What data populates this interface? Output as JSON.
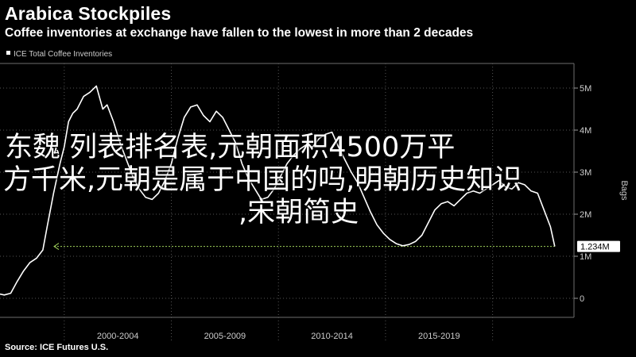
{
  "title": "Arabica Stockpiles",
  "subtitle": "Coffee inventories at exchange have fallen to the lowest in more than 2 decades",
  "legend_label": "ICE Total Coffee Inventories",
  "source": "Source: ICE Futures U.S.",
  "overlay": {
    "line1": "东魏  列表排名表,元朝面积4500万平",
    "line2": "方千米,元朝是属于中国的吗,明朝历史知识",
    "line3": ",宋朝简史"
  },
  "colors": {
    "background": "#000000",
    "line": "#ffffff",
    "grid": "#555555",
    "reference_line": "#9fd15a"
  },
  "chart_data": {
    "type": "line",
    "title": "Arabica Stockpiles",
    "subtitle": "Coffee inventories at exchange have fallen to the lowest in more than 2 decades",
    "ylabel": "Bags",
    "ylim": [
      0,
      5.2
    ],
    "xlim": [
      1997.0,
      2023.8
    ],
    "y_ticks": [
      0,
      1,
      2,
      3,
      4,
      5
    ],
    "y_tick_labels": [
      "0",
      "1M",
      "2M",
      "3M",
      "4M",
      "5M"
    ],
    "x_tick_labels": [
      {
        "label": "2000-2004",
        "center": 2002.5
      },
      {
        "label": "2005-2009",
        "center": 2007.5
      },
      {
        "label": "2010-2014",
        "center": 2012.5
      },
      {
        "label": "2015-2019",
        "center": 2017.5
      }
    ],
    "x_separators": [
      2000.0,
      2005.0,
      2010.0,
      2015.0,
      2020.0
    ],
    "latest_value": 1.234,
    "latest_label": "1.234M",
    "grid": true,
    "series": [
      {
        "name": "ICE Total Coffee Inventories",
        "x": [
          1997.0,
          1997.2,
          1997.5,
          1997.8,
          1998.1,
          1998.4,
          1998.7,
          1999.0,
          1999.2,
          1999.5,
          1999.8,
          2000.0,
          2000.2,
          2000.4,
          2000.6,
          2000.9,
          2001.2,
          2001.5,
          2001.8,
          2002.0,
          2002.3,
          2002.6,
          2002.9,
          2003.2,
          2003.5,
          2003.8,
          2004.1,
          2004.4,
          2004.7,
          2005.0,
          2005.3,
          2005.6,
          2005.9,
          2006.2,
          2006.5,
          2006.8,
          2007.1,
          2007.4,
          2007.7,
          2008.0,
          2008.3,
          2008.6,
          2008.9,
          2009.2,
          2009.5,
          2009.8,
          2010.1,
          2010.4,
          2010.7,
          2011.0,
          2011.3,
          2011.6,
          2011.9,
          2012.2,
          2012.5,
          2012.8,
          2013.1,
          2013.4,
          2013.7,
          2014.0,
          2014.3,
          2014.6,
          2014.9,
          2015.2,
          2015.5,
          2015.8,
          2016.1,
          2016.4,
          2016.7,
          2017.0,
          2017.3,
          2017.6,
          2017.9,
          2018.2,
          2018.5,
          2018.8,
          2019.1,
          2019.4,
          2019.7,
          2020.0,
          2020.3,
          2020.6,
          2020.9,
          2021.2,
          2021.5,
          2021.8,
          2022.1,
          2022.4,
          2022.7,
          2022.9
        ],
        "values": [
          0.1,
          0.08,
          0.12,
          0.4,
          0.65,
          0.85,
          0.95,
          1.15,
          1.7,
          2.5,
          3.2,
          3.6,
          4.2,
          4.4,
          4.5,
          4.8,
          4.9,
          5.05,
          4.5,
          4.6,
          4.2,
          3.7,
          3.3,
          2.9,
          2.6,
          2.4,
          2.35,
          2.5,
          2.8,
          3.2,
          3.8,
          4.3,
          4.55,
          4.6,
          4.35,
          4.2,
          4.45,
          4.3,
          4.0,
          3.7,
          3.2,
          2.85,
          2.6,
          2.35,
          2.4,
          2.6,
          2.9,
          3.2,
          3.4,
          3.55,
          3.65,
          3.6,
          3.8,
          3.9,
          3.95,
          3.6,
          3.3,
          3.0,
          2.75,
          2.4,
          2.05,
          1.75,
          1.55,
          1.4,
          1.3,
          1.25,
          1.28,
          1.35,
          1.5,
          1.8,
          2.1,
          2.25,
          2.3,
          2.2,
          2.35,
          2.5,
          2.55,
          2.5,
          2.6,
          2.7,
          2.8,
          2.65,
          2.6,
          2.75,
          2.7,
          2.55,
          2.5,
          2.1,
          1.7,
          1.234
        ]
      }
    ]
  }
}
